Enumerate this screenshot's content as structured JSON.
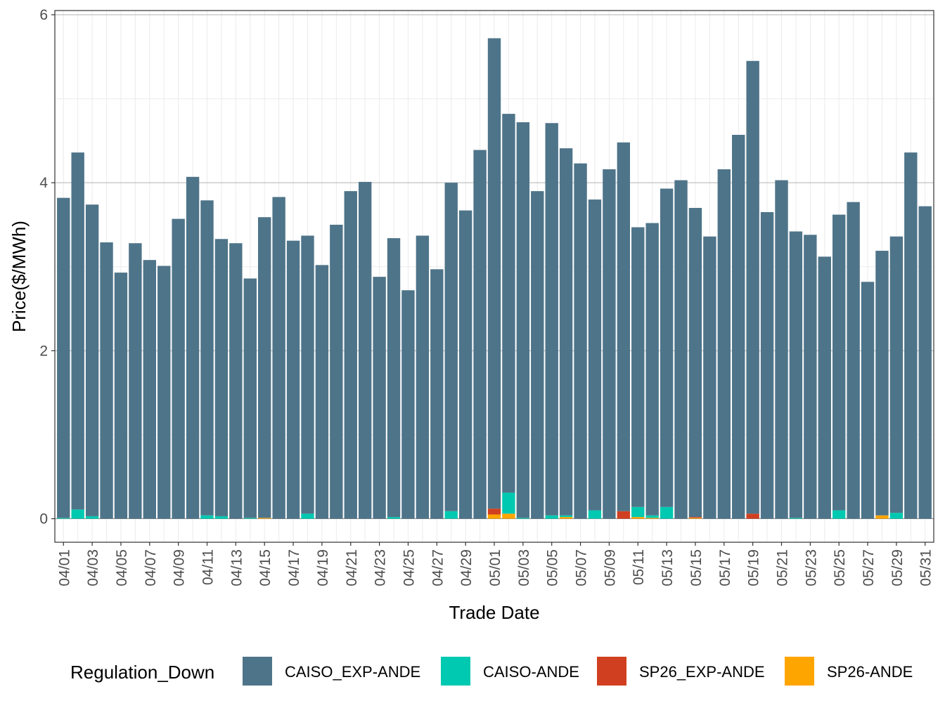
{
  "chart_data": {
    "type": "bar",
    "stacked": true,
    "title": "",
    "xlabel": "Trade Date",
    "ylabel": "Price($/MWh)",
    "ylim": [
      -0.28,
      6.05
    ],
    "y_ticks": [
      0,
      2,
      4,
      6
    ],
    "grid": true,
    "legend_position": "bottom",
    "legend_title": "Regulation_Down",
    "categories": [
      "04/01",
      "04/02",
      "04/03",
      "04/04",
      "04/05",
      "04/06",
      "04/07",
      "04/08",
      "04/09",
      "04/10",
      "04/11",
      "04/12",
      "04/13",
      "04/14",
      "04/15",
      "04/16",
      "04/17",
      "04/18",
      "04/19",
      "04/20",
      "04/21",
      "04/22",
      "04/23",
      "04/24",
      "04/25",
      "04/26",
      "04/27",
      "04/28",
      "04/29",
      "04/30",
      "05/01",
      "05/02",
      "05/03",
      "05/04",
      "05/05",
      "05/06",
      "05/07",
      "05/08",
      "05/09",
      "05/10",
      "05/11",
      "05/12",
      "05/13",
      "05/14",
      "05/15",
      "05/16",
      "05/17",
      "05/18",
      "05/19",
      "05/20",
      "05/21",
      "05/22",
      "05/23",
      "05/24",
      "05/25",
      "05/26",
      "05/27",
      "05/28",
      "05/29",
      "05/30",
      "05/31"
    ],
    "x_tick_labels": [
      "04/01",
      "04/03",
      "04/05",
      "04/07",
      "04/09",
      "04/11",
      "04/13",
      "04/15",
      "04/17",
      "04/19",
      "04/21",
      "04/23",
      "04/25",
      "04/27",
      "04/29",
      "05/01",
      "05/03",
      "05/05",
      "05/07",
      "05/09",
      "05/11",
      "05/13",
      "05/15",
      "05/17",
      "05/19",
      "05/21",
      "05/23",
      "05/25",
      "05/27",
      "05/29",
      "05/31"
    ],
    "series": [
      {
        "name": "SP26-ANDE",
        "color": "#FFA500",
        "values": [
          0,
          0,
          0,
          0,
          0,
          0,
          0,
          0,
          0,
          0,
          0,
          0,
          0,
          0,
          0.01,
          0,
          0,
          0,
          0,
          0,
          0,
          0,
          0,
          0,
          0,
          0,
          0,
          0,
          0,
          0,
          0.05,
          0.06,
          0,
          0,
          0,
          0.02,
          0,
          0,
          0,
          0,
          0.02,
          0.01,
          0,
          0,
          0.01,
          0,
          0,
          0,
          0,
          0,
          0,
          0,
          0,
          0,
          0,
          0,
          0,
          0.04,
          0,
          0,
          0
        ]
      },
      {
        "name": "SP26_EXP-ANDE",
        "color": "#D04020",
        "values": [
          0,
          0,
          0,
          0,
          0,
          0,
          0,
          0,
          0,
          0,
          0,
          0,
          0,
          0,
          0,
          0,
          0,
          0,
          0,
          0,
          0,
          0,
          0,
          0,
          0,
          0,
          0,
          0,
          0,
          0,
          0.07,
          0,
          0,
          0,
          0,
          0,
          0,
          0,
          0,
          0.09,
          0,
          0,
          0,
          0,
          0.01,
          0,
          0,
          0,
          0.06,
          0,
          0,
          0,
          0,
          0,
          0,
          0,
          0,
          0,
          0,
          0,
          0
        ]
      },
      {
        "name": "CAISO-ANDE",
        "color": "#00C9B1",
        "values": [
          0.01,
          0.11,
          0.03,
          0,
          0,
          0,
          0,
          0,
          0,
          0,
          0.04,
          0.03,
          0,
          0.01,
          0,
          0,
          0,
          0.06,
          0,
          0,
          0,
          0,
          0,
          0.02,
          0,
          0,
          0,
          0.09,
          0,
          0,
          0,
          0.25,
          0.01,
          0,
          0.04,
          0.02,
          0,
          0.1,
          0,
          0,
          0.12,
          0.03,
          0.14,
          0,
          0,
          0,
          0,
          0,
          0,
          0,
          0,
          0.01,
          0,
          0,
          0.1,
          0,
          0,
          0,
          0.07,
          0,
          0
        ]
      },
      {
        "name": "CAISO_EXP-ANDE",
        "color": "#4E7489",
        "values": [
          3.81,
          4.25,
          3.71,
          3.29,
          2.93,
          3.28,
          3.08,
          3.01,
          3.57,
          4.07,
          3.75,
          3.3,
          3.28,
          2.85,
          3.58,
          3.83,
          3.31,
          3.31,
          3.02,
          3.5,
          3.9,
          4.01,
          2.88,
          3.32,
          2.72,
          3.37,
          2.97,
          3.91,
          3.67,
          4.39,
          5.6,
          4.51,
          4.71,
          3.9,
          4.67,
          4.37,
          4.23,
          3.7,
          4.16,
          4.39,
          3.33,
          3.48,
          3.79,
          4.03,
          3.68,
          3.36,
          4.16,
          4.57,
          5.39,
          3.65,
          4.03,
          3.41,
          3.38,
          3.12,
          3.52,
          3.77,
          2.82,
          3.15,
          3.29,
          4.36,
          3.72
        ]
      }
    ],
    "legend_order": [
      "CAISO_EXP-ANDE",
      "CAISO-ANDE",
      "SP26_EXP-ANDE",
      "SP26-ANDE"
    ]
  }
}
